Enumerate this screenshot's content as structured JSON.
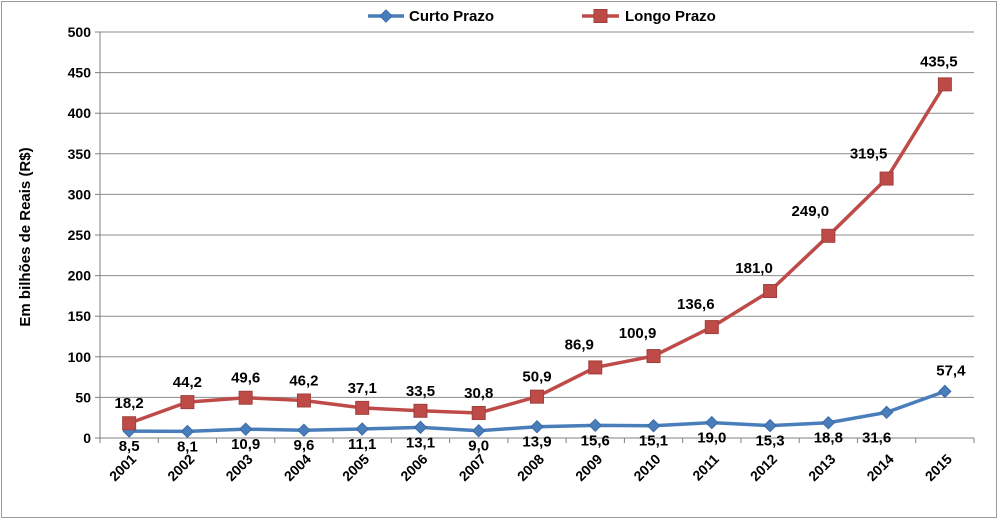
{
  "chart_data": {
    "type": "line",
    "title": "",
    "xlabel": "",
    "ylabel": "Em bilhões de Reais  (R$)",
    "ylim": [
      0,
      500
    ],
    "yticks": [
      0,
      50,
      100,
      150,
      200,
      250,
      300,
      350,
      400,
      450,
      500
    ],
    "grid": true,
    "legend_position": "top",
    "categories": [
      "2001",
      "2002",
      "2003",
      "2004",
      "2005",
      "2006",
      "2007",
      "2008",
      "2009",
      "2010",
      "2011",
      "2012",
      "2013",
      "2014",
      "2015"
    ],
    "series": [
      {
        "name": "Curto Prazo",
        "color": "#4a7ebb",
        "marker": "diamond",
        "values": [
          8.5,
          8.1,
          10.9,
          9.6,
          11.1,
          13.1,
          9.0,
          13.9,
          15.6,
          15.1,
          19.0,
          15.3,
          18.8,
          31.6,
          57.4
        ],
        "labels": [
          "8,5",
          "8,1",
          "10,9",
          "9,6",
          "11,1",
          "13,1",
          "9,0",
          "13,9",
          "15,6",
          "15,1",
          "19,0",
          "15,3",
          "18,8",
          "31,6",
          "57,4"
        ]
      },
      {
        "name": "Longo Prazo",
        "color": "#be4b48",
        "marker": "square",
        "values": [
          18.2,
          44.2,
          49.6,
          46.2,
          37.1,
          33.5,
          30.8,
          50.9,
          86.9,
          100.9,
          136.6,
          181.0,
          249.0,
          319.5,
          435.5
        ],
        "labels": [
          "18,2",
          "44,2",
          "49,6",
          "46,2",
          "37,1",
          "33,5",
          "30,8",
          "50,9",
          "86,9",
          "100,9",
          "136,6",
          "181,0",
          "249,0",
          "319,5",
          "435,5"
        ]
      }
    ]
  }
}
